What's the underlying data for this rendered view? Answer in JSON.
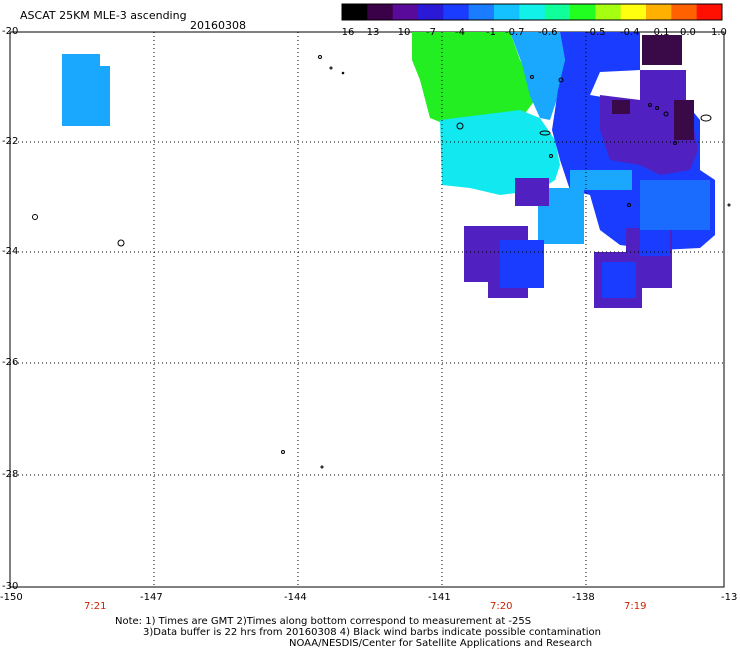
{
  "header": {
    "title": "ASCAT 25KM MLE-3 ascending",
    "date": "20160308"
  },
  "colorbar": {
    "labels": [
      "-16",
      "-13",
      "-10",
      "-7",
      "-4",
      "-1",
      "-0.7",
      "-0.6",
      "-0.5",
      "-0.4",
      "-0.1",
      "0.0",
      "1.0"
    ],
    "colors": [
      "#000000",
      "#3a0048",
      "#5a0a9a",
      "#2a1ad8",
      "#1a3cff",
      "#1a7cff",
      "#14c2ff",
      "#12f0ea",
      "#10ff9a",
      "#20ff20",
      "#a6ff10",
      "#ffff10",
      "#ffb000",
      "#ff6000",
      "#ff1000"
    ]
  },
  "axes": {
    "y_labels": [
      "-20",
      "-22",
      "-24",
      "-26",
      "-28",
      "-30"
    ],
    "x_labels": [
      "-150",
      "-147",
      "-144",
      "-141",
      "-138",
      "-13"
    ],
    "grid": "dotted"
  },
  "times": [
    "7:21",
    "7:20",
    "7:19"
  ],
  "notes": {
    "line1": "Note: 1) Times are GMT 2)Times along bottom correspond to measurement at -25S",
    "line2": "3)Data buffer is 22 hrs from 20160308 4) Black wind barbs indicate possible contamination",
    "line3": "NOAA/NESDIS/Center for Satellite Applications and Research"
  },
  "data_colors": {
    "green": "#22ee22",
    "cyan": "#12e8f0",
    "light_blue": "#1aa8ff",
    "blue": "#1a3cff",
    "purple": "#5020c0",
    "dark_purple": "#3a0a48"
  }
}
